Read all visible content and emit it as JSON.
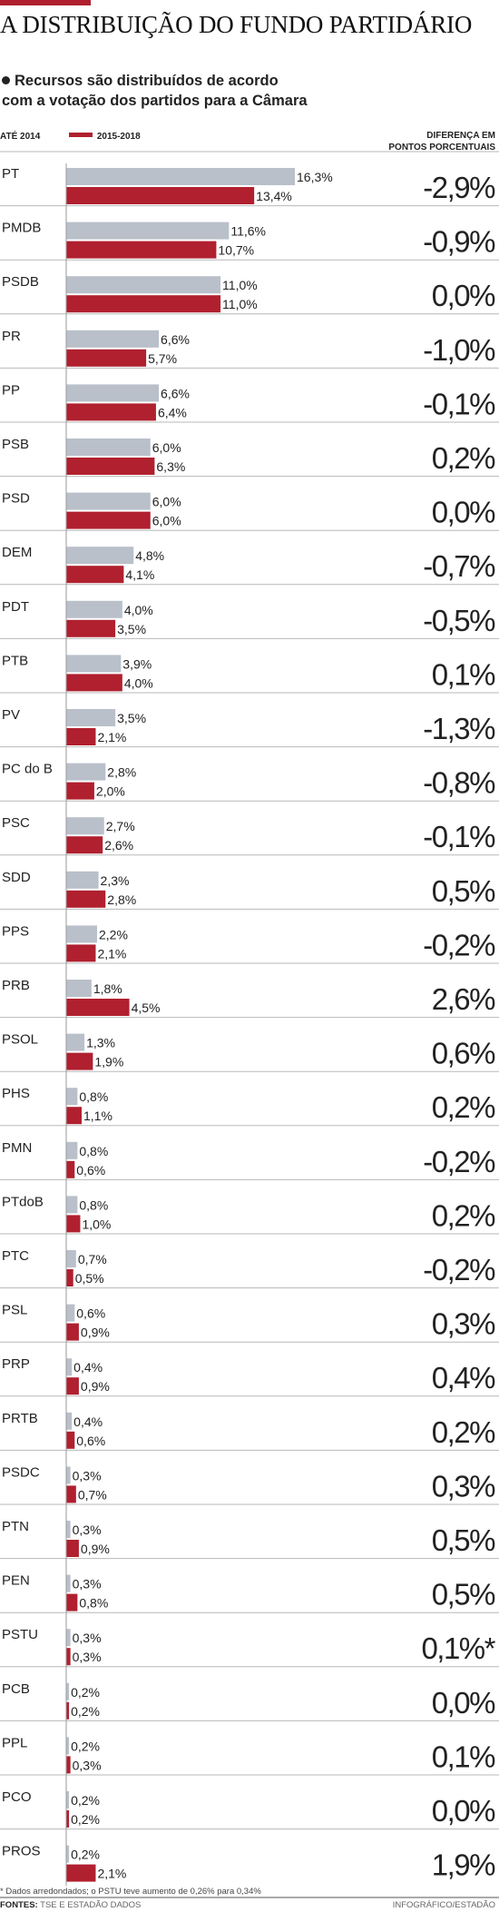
{
  "header": {
    "title": "A DISTRIBUIÇÃO DO FUNDO PARTIDÁRIO",
    "subtitle_line1": "Recursos são distribuídos de acordo",
    "subtitle_line2": "com a votação dos partidos para a Câmara",
    "diff_header_line1": "DIFERENÇA EM",
    "diff_header_line2": "PONTOS PORCENTUAIS"
  },
  "colors": {
    "accent": "#b0202f",
    "bar_before": "#b9c0ca",
    "bar_after": "#b0202f",
    "divider": "#b8b8b8"
  },
  "chart_data": {
    "type": "bar",
    "orientation": "horizontal",
    "series": [
      {
        "name": "ATÉ 2014",
        "color": "#b9c0ca",
        "values": [
          16.3,
          11.6,
          11.0,
          6.6,
          6.6,
          6.0,
          6.0,
          4.8,
          4.0,
          3.9,
          3.5,
          2.8,
          2.7,
          2.3,
          2.2,
          1.8,
          1.3,
          0.8,
          0.8,
          0.8,
          0.7,
          0.6,
          0.4,
          0.4,
          0.3,
          0.3,
          0.3,
          0.3,
          0.2,
          0.2,
          0.2,
          0.2
        ],
        "labels": [
          "16,3%",
          "11,6%",
          "11,0%",
          "6,6%",
          "6,6%",
          "6,0%",
          "6,0%",
          "4,8%",
          "4,0%",
          "3,9%",
          "3,5%",
          "2,8%",
          "2,7%",
          "2,3%",
          "2,2%",
          "1,8%",
          "1,3%",
          "0,8%",
          "0,8%",
          "0,8%",
          "0,7%",
          "0,6%",
          "0,4%",
          "0,4%",
          "0,3%",
          "0,3%",
          "0,3%",
          "0,3%",
          "0,2%",
          "0,2%",
          "0,2%",
          "0,2%"
        ]
      },
      {
        "name": "2015-2018",
        "color": "#b0202f",
        "values": [
          13.4,
          10.7,
          11.0,
          5.7,
          6.4,
          6.3,
          6.0,
          4.1,
          3.5,
          4.0,
          2.1,
          2.0,
          2.6,
          2.8,
          2.1,
          4.5,
          1.9,
          1.1,
          0.6,
          1.0,
          0.5,
          0.9,
          0.9,
          0.6,
          0.7,
          0.9,
          0.8,
          0.3,
          0.2,
          0.3,
          0.2,
          2.1
        ],
        "labels": [
          "13,4%",
          "10,7%",
          "11,0%",
          "5,7%",
          "6,4%",
          "6,3%",
          "6,0%",
          "4,1%",
          "3,5%",
          "4,0%",
          "2,1%",
          "2,0%",
          "2,6%",
          "2,8%",
          "2,1%",
          "4,5%",
          "1,9%",
          "1,1%",
          "0,6%",
          "1,0%",
          "0,5%",
          "0,9%",
          "0,9%",
          "0,6%",
          "0,7%",
          "0,9%",
          "0,8%",
          "0,3%",
          "0,2%",
          "0,3%",
          "0,2%",
          "2,1%"
        ]
      }
    ],
    "categories": [
      "PT",
      "PMDB",
      "PSDB",
      "PR",
      "PP",
      "PSB",
      "PSD",
      "DEM",
      "PDT",
      "PTB",
      "PV",
      "PC do B",
      "PSC",
      "SDD",
      "PPS",
      "PRB",
      "PSOL",
      "PHS",
      "PMN",
      "PTdoB",
      "PTC",
      "PSL",
      "PRP",
      "PRTB",
      "PSDC",
      "PTN",
      "PEN",
      "PSTU",
      "PCB",
      "PPL",
      "PCO",
      "PROS"
    ],
    "differences": [
      "-2,9%",
      "-0,9%",
      "0,0%",
      "-1,0%",
      "-0,1%",
      "0,2%",
      "0,0%",
      "-0,7%",
      "-0,5%",
      "0,1%",
      "-1,3%",
      "-0,8%",
      "-0,1%",
      "0,5%",
      "-0,2%",
      "2,6%",
      "0,6%",
      "0,2%",
      "-0,2%",
      "0,2%",
      "-0,2%",
      "0,3%",
      "0,4%",
      "0,2%",
      "0,3%",
      "0,5%",
      "0,5%",
      "0,1%*",
      "0,0%",
      "0,1%",
      "0,0%",
      "1,9%"
    ],
    "xlim": [
      0,
      16.3
    ]
  },
  "footer": {
    "footnote": "* Dados arredondados; o PSTU teve aumento de 0,26% para 0,34%",
    "sources_label": "FONTES:",
    "sources_text": " TSE E ESTADÃO DADOS",
    "credit": "INFOGRÁFICO/ESTADÃO"
  }
}
